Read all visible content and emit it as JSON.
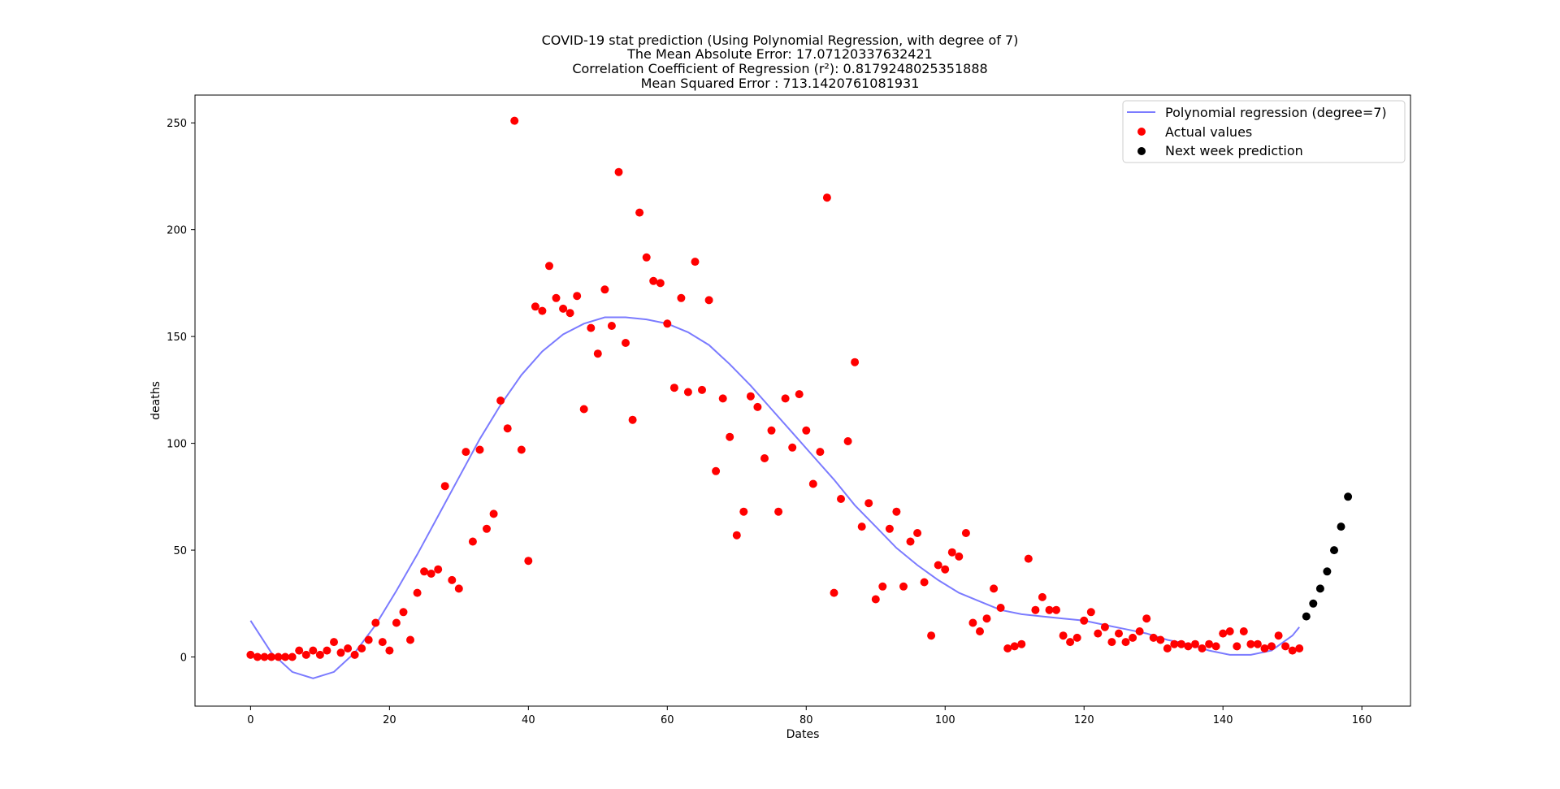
{
  "chart_data": {
    "type": "scatter",
    "title": [
      "COVID-19 stat prediction (Using Polynomial Regression, with degree of 7)",
      "The Mean Absolute Error: 17.07120337632421",
      "Correlation Coefficient of Regression (r²): 0.8179248025351888",
      "Mean Squared Error : 713.1420761081931"
    ],
    "xlabel": "Dates",
    "ylabel": "deaths",
    "xlim": [
      -8,
      167
    ],
    "ylim": [
      -23,
      263
    ],
    "xticks": [
      0,
      20,
      40,
      60,
      80,
      100,
      120,
      140,
      160
    ],
    "yticks": [
      0,
      50,
      100,
      150,
      200,
      250
    ],
    "legend_position": "top-right",
    "series": [
      {
        "name": "Polynomial regression (degree=7)",
        "kind": "line",
        "color": "#7b7bff",
        "x": [
          0,
          3,
          6,
          9,
          12,
          15,
          18,
          21,
          24,
          27,
          30,
          33,
          36,
          39,
          42,
          45,
          48,
          51,
          54,
          57,
          60,
          63,
          66,
          69,
          72,
          75,
          78,
          81,
          84,
          87,
          90,
          93,
          96,
          99,
          102,
          105,
          108,
          111,
          114,
          117,
          120,
          123,
          126,
          129,
          132,
          135,
          138,
          141,
          144,
          147,
          150,
          151
        ],
        "y": [
          17,
          2,
          -7,
          -10,
          -7,
          2,
          15,
          31,
          48,
          66,
          84,
          102,
          118,
          132,
          143,
          151,
          156,
          159,
          159,
          158,
          156,
          152,
          146,
          137,
          127,
          116,
          105,
          94,
          83,
          71,
          61,
          51,
          43,
          36,
          30,
          26,
          22,
          20,
          19,
          18,
          17,
          15,
          13,
          11,
          8,
          6,
          3,
          1,
          1,
          3,
          10,
          14
        ]
      },
      {
        "name": "Actual values",
        "kind": "scatter",
        "color": "#ff0000",
        "x": [
          0,
          1,
          2,
          3,
          4,
          5,
          6,
          7,
          8,
          9,
          10,
          11,
          12,
          13,
          14,
          15,
          16,
          17,
          18,
          19,
          20,
          21,
          22,
          23,
          24,
          25,
          26,
          27,
          28,
          29,
          30,
          31,
          32,
          33,
          34,
          35,
          36,
          37,
          38,
          39,
          40,
          41,
          42,
          43,
          44,
          45,
          46,
          47,
          48,
          49,
          50,
          51,
          52,
          53,
          54,
          55,
          56,
          57,
          58,
          59,
          60,
          61,
          62,
          63,
          64,
          65,
          66,
          67,
          68,
          69,
          70,
          71,
          72,
          73,
          74,
          75,
          76,
          77,
          78,
          79,
          80,
          81,
          82,
          83,
          84,
          85,
          86,
          87,
          88,
          89,
          90,
          91,
          92,
          93,
          94,
          95,
          96,
          97,
          98,
          99,
          100,
          101,
          102,
          103,
          104,
          105,
          106,
          107,
          108,
          109,
          110,
          111,
          112,
          113,
          114,
          115,
          116,
          117,
          118,
          119,
          120,
          121,
          122,
          123,
          124,
          125,
          126,
          127,
          128,
          129,
          130,
          131,
          132,
          133,
          134,
          135,
          136,
          137,
          138,
          139,
          140,
          141,
          142,
          143,
          144,
          145,
          146,
          147,
          148,
          149,
          150,
          151
        ],
        "y": [
          1,
          0,
          0,
          0,
          0,
          0,
          0,
          3,
          1,
          3,
          1,
          3,
          7,
          2,
          4,
          1,
          4,
          8,
          16,
          7,
          3,
          16,
          21,
          8,
          30,
          40,
          39,
          41,
          80,
          36,
          32,
          96,
          54,
          97,
          60,
          67,
          120,
          107,
          251,
          97,
          45,
          164,
          162,
          183,
          168,
          163,
          161,
          169,
          116,
          154,
          142,
          172,
          155,
          227,
          147,
          111,
          208,
          187,
          176,
          175,
          156,
          126,
          168,
          124,
          185,
          125,
          167,
          87,
          121,
          103,
          57,
          68,
          122,
          117,
          93,
          106,
          68,
          121,
          98,
          123,
          106,
          81,
          96,
          215,
          30,
          74,
          101,
          138,
          61,
          72,
          27,
          33,
          60,
          68,
          33,
          54,
          58,
          35,
          10,
          43,
          41,
          49,
          47,
          58,
          16,
          12,
          18,
          32,
          23,
          4,
          5,
          6,
          46,
          22,
          28,
          22,
          22,
          10,
          7,
          9,
          17,
          21,
          11,
          14,
          7,
          11,
          7,
          9,
          12,
          18,
          9,
          8,
          4,
          6,
          6,
          5,
          6,
          4,
          6,
          5,
          11,
          12,
          5,
          12,
          6,
          6,
          4,
          5,
          10,
          5,
          3,
          4
        ]
      },
      {
        "name": "Next week prediction",
        "kind": "scatter",
        "color": "#000000",
        "x": [
          152,
          153,
          154,
          155,
          156,
          157,
          158
        ],
        "y": [
          19,
          25,
          32,
          40,
          50,
          61,
          75
        ]
      }
    ]
  }
}
